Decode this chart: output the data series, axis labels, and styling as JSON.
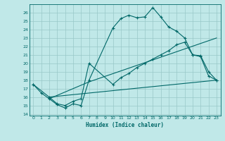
{
  "xlabel": "Humidex (Indice chaleur)",
  "bg_color": "#c0e8e8",
  "grid_color": "#98c8c8",
  "line_color": "#006868",
  "xlim": [
    -0.5,
    23.5
  ],
  "ylim": [
    13.8,
    27.0
  ],
  "yticks": [
    14,
    15,
    16,
    17,
    18,
    19,
    20,
    21,
    22,
    23,
    24,
    25,
    26
  ],
  "xticks": [
    0,
    1,
    2,
    3,
    4,
    5,
    6,
    7,
    8,
    9,
    10,
    11,
    12,
    13,
    14,
    15,
    16,
    17,
    18,
    19,
    20,
    21,
    22,
    23
  ],
  "line1_x": [
    0,
    1,
    2,
    3,
    4,
    5,
    6,
    7,
    10,
    11,
    12,
    13,
    14,
    15,
    16,
    17,
    18,
    19,
    20,
    21,
    22,
    23
  ],
  "line1_y": [
    17.5,
    16.5,
    15.8,
    15.1,
    14.7,
    15.2,
    15.0,
    18.0,
    24.2,
    25.3,
    25.7,
    25.4,
    25.5,
    26.6,
    25.5,
    24.3,
    23.8,
    23.0,
    21.0,
    20.8,
    18.5,
    18.0
  ],
  "line2_x": [
    0,
    2,
    3,
    4,
    5,
    6,
    7,
    10,
    11,
    12,
    13,
    14,
    15,
    16,
    17,
    18,
    19,
    20,
    21,
    22,
    23
  ],
  "line2_y": [
    17.5,
    16.0,
    15.2,
    15.0,
    15.5,
    15.8,
    20.0,
    17.5,
    18.3,
    18.8,
    19.5,
    20.0,
    20.5,
    21.0,
    21.5,
    22.2,
    22.5,
    21.0,
    20.9,
    19.0,
    18.0
  ],
  "line3_x": [
    2,
    23
  ],
  "line3_y": [
    16.0,
    18.0
  ],
  "line4_x": [
    2,
    7,
    23
  ],
  "line4_y": [
    15.8,
    17.8,
    23.0
  ]
}
